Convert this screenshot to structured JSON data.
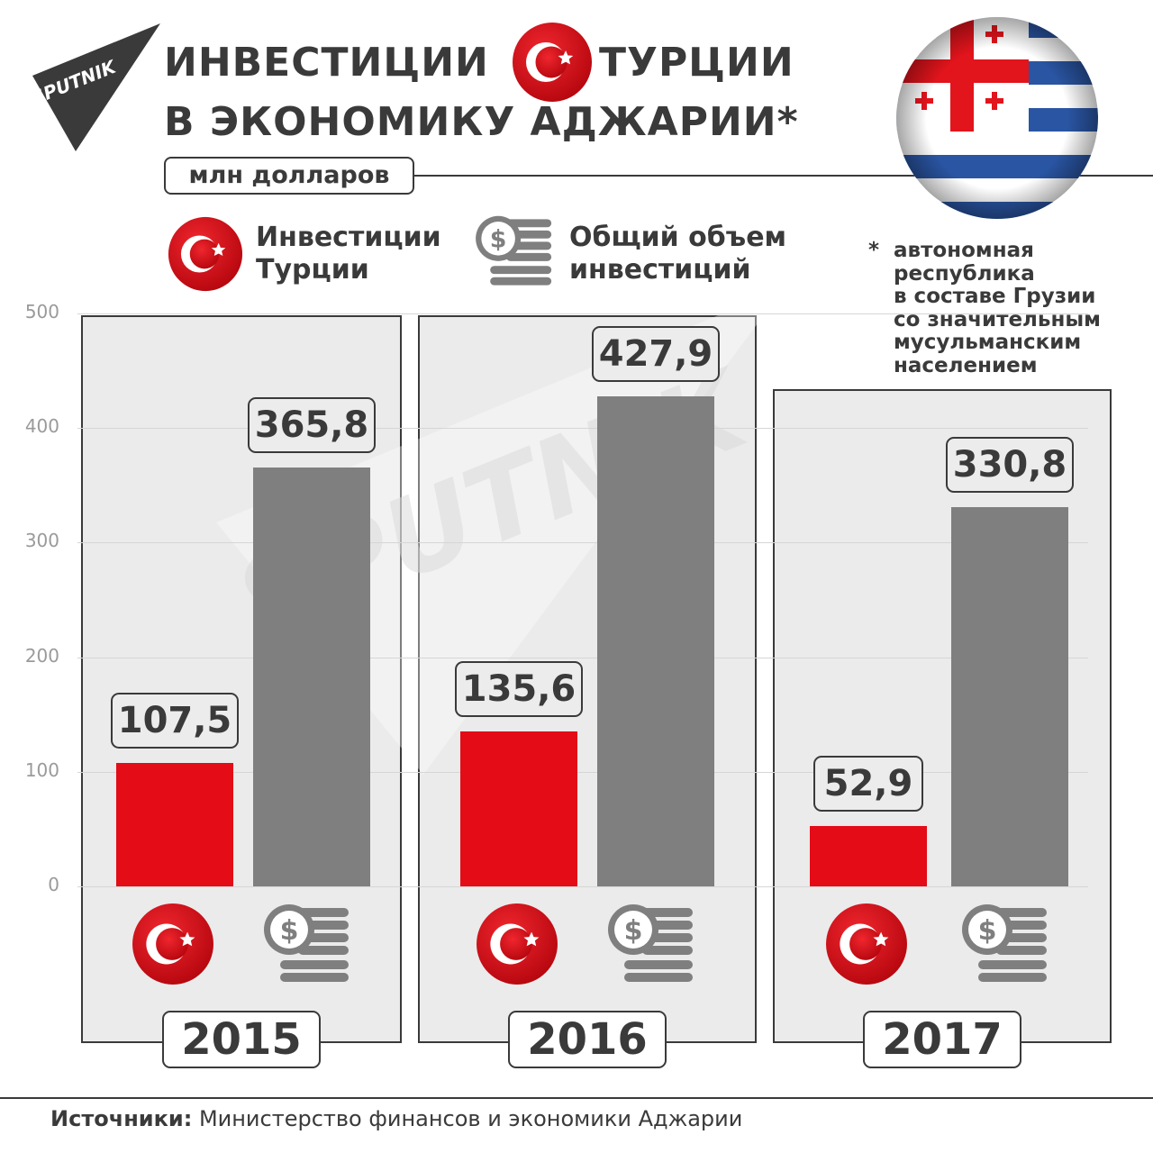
{
  "header": {
    "brand": "SPUTNIK",
    "title_part1": "ИНВЕСТИЦИИ",
    "title_part2": "ТУРЦИИ",
    "title_line2": "В ЭКОНОМИКУ АДЖАРИИ*",
    "unit": "млн долларов"
  },
  "legend": {
    "turkey_line1": "Инвестиции",
    "turkey_line2": "Турции",
    "total_line1": "Общий объем",
    "total_line2": "инвестиций"
  },
  "footnote": {
    "star": "*",
    "lines": [
      "автономная",
      "республика",
      "в составе Грузии",
      "со значительным",
      "мусульманским",
      "населением"
    ]
  },
  "source": {
    "label": "Источники:",
    "text": "Министерство финансов и экономики Аджарии"
  },
  "icons": {
    "flag": "turkey-flag-icon",
    "coins": "dollar-coins-icon",
    "region_flag": "adjara-flag-icon",
    "logo": "sputnik-logo-icon"
  },
  "colors": {
    "turkey": "#e30c17",
    "total": "#7f7f7f",
    "text": "#3a3a3a",
    "panel": "#ebebeb"
  },
  "chart_data": {
    "type": "bar",
    "title": "ИНВЕСТИЦИИ ТУРЦИИ В ЭКОНОМИКУ АДЖАРИИ*",
    "ylabel": "млн долларов",
    "categories": [
      "2015",
      "2016",
      "2017"
    ],
    "series": [
      {
        "name": "Инвестиции Турции",
        "values": [
          107.5,
          135.6,
          52.9
        ],
        "labels": [
          "107,5",
          "135,6",
          "52,9"
        ]
      },
      {
        "name": "Общий объем инвестиций",
        "values": [
          365.8,
          427.9,
          330.8
        ],
        "labels": [
          "365,8",
          "427,9",
          "330,8"
        ]
      }
    ],
    "ylim": [
      0,
      500
    ],
    "yticks": [
      "0",
      "100",
      "200",
      "300",
      "400",
      "500"
    ],
    "grid": true,
    "legend": "top"
  }
}
